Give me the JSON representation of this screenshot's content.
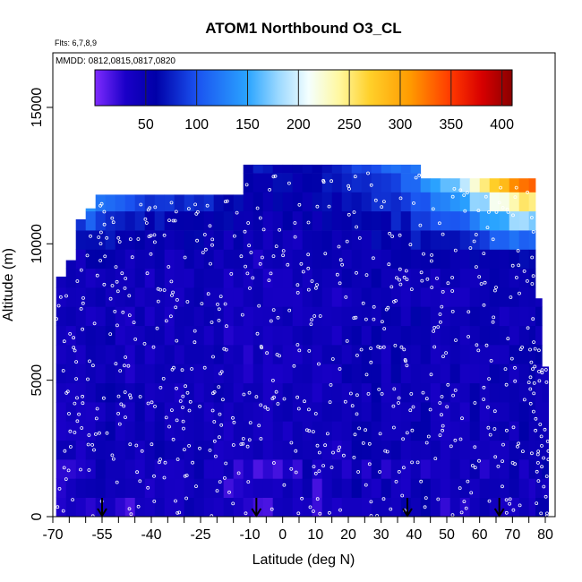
{
  "chart_data": {
    "type": "heatmap",
    "title": "ATOM1 Northbound O3_CL",
    "subtitle_flights": "Flts: 6,7,8,9",
    "subtitle_dates": "MMDD: 0812,0815,0817,0820",
    "xlabel": "Latitude (deg N)",
    "ylabel": "Altitude (m)",
    "xlim": [
      -70,
      83
    ],
    "ylim": [
      0,
      17000
    ],
    "x_tick_labels": [
      {
        "v": -70,
        "label": "-70"
      },
      {
        "v": -55,
        "label": "-55"
      },
      {
        "v": -40,
        "label": "-40"
      },
      {
        "v": -25,
        "label": "-25"
      },
      {
        "v": -10,
        "label": "-10"
      },
      {
        "v": 0,
        "label": "0"
      },
      {
        "v": 10,
        "label": "10"
      },
      {
        "v": 20,
        "label": "20"
      },
      {
        "v": 30,
        "label": "30"
      },
      {
        "v": 40,
        "label": "40"
      },
      {
        "v": 50,
        "label": "50"
      },
      {
        "v": 60,
        "label": "60"
      },
      {
        "v": 70,
        "label": "70"
      },
      {
        "v": 80,
        "label": "80"
      }
    ],
    "x_minor_ticks": [
      -65,
      -60,
      -50,
      -45,
      -35,
      -30,
      -20,
      -15,
      -5,
      5,
      15,
      25,
      35,
      45,
      55,
      65,
      75
    ],
    "y_ticks": [
      {
        "v": 0,
        "label": "0"
      },
      {
        "v": 5000,
        "label": "5000"
      },
      {
        "v": 10000,
        "label": "10000"
      },
      {
        "v": 15000,
        "label": "15000"
      }
    ],
    "colorbar": {
      "range": [
        0,
        410
      ],
      "ticks": [
        {
          "v": 50,
          "label": "50"
        },
        {
          "v": 100,
          "label": "100"
        },
        {
          "v": 150,
          "label": "150"
        },
        {
          "v": 200,
          "label": "200"
        },
        {
          "v": 250,
          "label": "250"
        },
        {
          "v": 300,
          "label": "300"
        },
        {
          "v": 350,
          "label": "350"
        },
        {
          "v": 400,
          "label": "400"
        }
      ],
      "stops": [
        {
          "v": 0,
          "color": "#7f2bff"
        },
        {
          "v": 30,
          "color": "#1a00c8"
        },
        {
          "v": 60,
          "color": "#0000a8"
        },
        {
          "v": 100,
          "color": "#1a52f0"
        },
        {
          "v": 150,
          "color": "#2aa4ff"
        },
        {
          "v": 180,
          "color": "#9ad8ff"
        },
        {
          "v": 210,
          "color": "#f4ffff"
        },
        {
          "v": 240,
          "color": "#fff8a0"
        },
        {
          "v": 270,
          "color": "#ffd02a"
        },
        {
          "v": 310,
          "color": "#ff9a00"
        },
        {
          "v": 350,
          "color": "#ff3800"
        },
        {
          "v": 380,
          "color": "#d80000"
        },
        {
          "v": 410,
          "color": "#8a0000"
        }
      ]
    },
    "curtain_columns": [
      {
        "x0": -69,
        "x1": -66,
        "top": 8800,
        "lower": 42,
        "upper": 55
      },
      {
        "x0": -66,
        "x1": -63,
        "top": 9400,
        "lower": 40,
        "upper": 55
      },
      {
        "x0": -63,
        "x1": -60,
        "top": 10900,
        "lower": 40,
        "upper": 95
      },
      {
        "x0": -60,
        "x1": -57,
        "top": 11300,
        "lower": 42,
        "upper": 150
      },
      {
        "x0": -57,
        "x1": -54,
        "top": 11800,
        "lower": 45,
        "upper": 140
      },
      {
        "x0": -54,
        "x1": -51,
        "top": 11800,
        "lower": 50,
        "upper": 130
      },
      {
        "x0": -51,
        "x1": -48,
        "top": 11800,
        "lower": 42,
        "upper": 120
      },
      {
        "x0": -48,
        "x1": -45,
        "top": 11800,
        "lower": 38,
        "upper": 110
      },
      {
        "x0": -45,
        "x1": -42,
        "top": 11800,
        "lower": 44,
        "upper": 100
      },
      {
        "x0": -42,
        "x1": -39,
        "top": 11800,
        "lower": 40,
        "upper": 95
      },
      {
        "x0": -39,
        "x1": -36,
        "top": 11800,
        "lower": 46,
        "upper": 90
      },
      {
        "x0": -36,
        "x1": -33,
        "top": 11800,
        "lower": 42,
        "upper": 90
      },
      {
        "x0": -33,
        "x1": -30,
        "top": 11800,
        "lower": 40,
        "upper": 88
      },
      {
        "x0": -30,
        "x1": -27,
        "top": 11800,
        "lower": 48,
        "upper": 86
      },
      {
        "x0": -27,
        "x1": -24,
        "top": 11800,
        "lower": 44,
        "upper": 84
      },
      {
        "x0": -24,
        "x1": -21,
        "top": 11800,
        "lower": 40,
        "upper": 82
      },
      {
        "x0": -21,
        "x1": -18,
        "top": 11800,
        "lower": 42,
        "upper": 80
      },
      {
        "x0": -18,
        "x1": -15,
        "top": 11800,
        "lower": 38,
        "upper": 78
      },
      {
        "x0": -15,
        "x1": -12,
        "top": 11800,
        "lower": 40,
        "upper": 76
      },
      {
        "x0": -12,
        "x1": -9,
        "top": 12900,
        "lower": 36,
        "upper": 70
      },
      {
        "x0": -9,
        "x1": -6,
        "top": 12900,
        "lower": 38,
        "upper": 68
      },
      {
        "x0": -6,
        "x1": -3,
        "top": 12900,
        "lower": 35,
        "upper": 68
      },
      {
        "x0": -3,
        "x1": 0,
        "top": 12900,
        "lower": 40,
        "upper": 66
      },
      {
        "x0": 0,
        "x1": 3,
        "top": 12900,
        "lower": 42,
        "upper": 66
      },
      {
        "x0": 3,
        "x1": 6,
        "top": 12900,
        "lower": 38,
        "upper": 64
      },
      {
        "x0": 6,
        "x1": 9,
        "top": 12900,
        "lower": 46,
        "upper": 70
      },
      {
        "x0": 9,
        "x1": 12,
        "top": 12900,
        "lower": 40,
        "upper": 72
      },
      {
        "x0": 12,
        "x1": 15,
        "top": 12900,
        "lower": 44,
        "upper": 74
      },
      {
        "x0": 15,
        "x1": 18,
        "top": 12900,
        "lower": 40,
        "upper": 76
      },
      {
        "x0": 18,
        "x1": 21,
        "top": 12900,
        "lower": 46,
        "upper": 82
      },
      {
        "x0": 21,
        "x1": 24,
        "top": 12900,
        "lower": 50,
        "upper": 90
      },
      {
        "x0": 24,
        "x1": 27,
        "top": 12900,
        "lower": 48,
        "upper": 96
      },
      {
        "x0": 27,
        "x1": 30,
        "top": 12900,
        "lower": 52,
        "upper": 104
      },
      {
        "x0": 30,
        "x1": 33,
        "top": 12900,
        "lower": 46,
        "upper": 110
      },
      {
        "x0": 33,
        "x1": 36,
        "top": 12900,
        "lower": 50,
        "upper": 120
      },
      {
        "x0": 36,
        "x1": 39,
        "top": 12900,
        "lower": 46,
        "upper": 130
      },
      {
        "x0": 39,
        "x1": 42,
        "top": 12900,
        "lower": 52,
        "upper": 140
      },
      {
        "x0": 42,
        "x1": 45,
        "top": 12400,
        "lower": 48,
        "upper": 150
      },
      {
        "x0": 45,
        "x1": 48,
        "top": 12400,
        "lower": 44,
        "upper": 165
      },
      {
        "x0": 48,
        "x1": 51,
        "top": 12400,
        "lower": 42,
        "upper": 180
      },
      {
        "x0": 51,
        "x1": 54,
        "top": 12400,
        "lower": 46,
        "upper": 200
      },
      {
        "x0": 54,
        "x1": 57,
        "top": 12400,
        "lower": 42,
        "upper": 225
      },
      {
        "x0": 57,
        "x1": 60,
        "top": 12400,
        "lower": 48,
        "upper": 255
      },
      {
        "x0": 60,
        "x1": 63,
        "top": 12400,
        "lower": 44,
        "upper": 285
      },
      {
        "x0": 63,
        "x1": 66,
        "top": 12400,
        "lower": 46,
        "upper": 315
      },
      {
        "x0": 66,
        "x1": 69,
        "top": 12400,
        "lower": 42,
        "upper": 345
      },
      {
        "x0": 69,
        "x1": 72,
        "top": 12400,
        "lower": 46,
        "upper": 375
      },
      {
        "x0": 72,
        "x1": 75,
        "top": 12400,
        "lower": 50,
        "upper": 395
      },
      {
        "x0": 75,
        "x1": 77,
        "top": 12400,
        "lower": 48,
        "upper": 400
      },
      {
        "x0": 77,
        "x1": 79,
        "top": 8000,
        "lower": 50,
        "upper": 60
      },
      {
        "x0": 79,
        "x1": 81,
        "top": 5500,
        "lower": 52,
        "upper": 60
      }
    ],
    "flight_track_arrows": [
      -55,
      -8,
      38,
      66
    ]
  }
}
